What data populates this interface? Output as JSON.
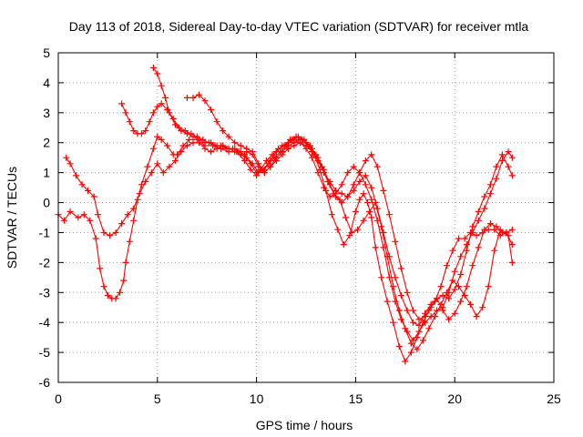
{
  "chart_data": {
    "type": "scatter",
    "title": "Day 113 of 2018, Sidereal Day-to-day VTEC variation (SDTVAR) for receiver mtla",
    "xlabel": "GPS time / hours",
    "ylabel": "SDTVAR / TECUs",
    "xlim": [
      0,
      25
    ],
    "ylim": [
      -6,
      5
    ],
    "xticks": [
      0,
      5,
      10,
      15,
      20,
      25
    ],
    "yticks": [
      -6,
      -5,
      -4,
      -3,
      -2,
      -1,
      0,
      1,
      2,
      3,
      4,
      5
    ],
    "grid": true,
    "marker": "+",
    "color": "#ff0000",
    "series": [
      {
        "x": [
          0.0,
          0.3,
          0.6,
          1.0,
          1.3,
          1.6,
          1.9,
          2.1,
          2.3,
          2.5,
          2.7,
          2.9,
          3.1,
          3.3,
          3.4,
          3.6,
          3.8,
          4.0,
          4.2,
          4.5,
          4.8,
          5.0,
          5.2,
          5.5,
          5.8,
          6.0,
          6.3,
          6.6,
          7.0,
          7.4,
          7.8,
          8.2,
          8.6,
          9.0,
          9.4,
          9.7,
          10.0,
          10.2,
          10.5,
          10.8,
          11.1,
          11.4,
          11.7,
          12.0,
          12.3,
          12.6,
          12.9,
          13.2,
          13.5,
          13.8,
          14.1,
          14.4,
          14.7,
          15.0,
          15.2,
          15.4,
          15.6,
          15.8,
          16.0,
          16.3,
          16.6,
          16.9,
          17.2,
          17.5,
          17.8,
          18.1,
          18.4,
          18.7,
          19.0,
          19.3,
          19.6,
          19.9,
          20.2,
          20.5,
          20.8,
          21.1,
          21.4,
          21.7,
          22.0,
          22.3,
          22.6,
          22.9
        ],
        "y": [
          -0.4,
          -0.6,
          -0.3,
          -0.5,
          -0.4,
          -0.6,
          -1.2,
          -2.2,
          -2.8,
          -3.1,
          -3.2,
          -3.2,
          -3.0,
          -2.6,
          -2.0,
          -1.3,
          -0.6,
          0.1,
          0.6,
          1.2,
          1.8,
          2.2,
          2.1,
          1.9,
          1.6,
          1.6,
          1.9,
          2.1,
          2.1,
          1.9,
          1.9,
          1.8,
          1.7,
          1.7,
          1.4,
          1.1,
          0.9,
          1.1,
          1.4,
          1.6,
          1.8,
          1.9,
          2.1,
          2.2,
          2.1,
          1.9,
          1.6,
          1.1,
          0.4,
          -0.4,
          -0.9,
          -1.4,
          -1.1,
          -0.3,
          0.1,
          0.3,
          0.0,
          -0.5,
          -1.5,
          -2.5,
          -3.3,
          -4.0,
          -4.8,
          -5.3,
          -5.0,
          -4.5,
          -4.0,
          -3.6,
          -3.3,
          -2.8,
          -2.1,
          -1.6,
          -1.2,
          -1.2,
          -1.0,
          -1.1,
          -1.0,
          -0.9,
          -0.9,
          -1.1,
          -1.0,
          -0.9
        ]
      },
      {
        "x": [
          0.4,
          0.6,
          0.9,
          1.2,
          1.5,
          1.8,
          2.0,
          2.3,
          2.6,
          2.9,
          3.2,
          3.5,
          3.8,
          4.1,
          4.4,
          4.7,
          5.0,
          5.3,
          5.6,
          5.9,
          6.2,
          6.5,
          6.8,
          7.1,
          7.4,
          7.7,
          8.0,
          8.3,
          8.6,
          8.9,
          9.2,
          9.5,
          9.8,
          10.1,
          10.4,
          10.7,
          11.0,
          11.3,
          11.6,
          11.9,
          12.2,
          12.5,
          12.8,
          13.1,
          13.4,
          13.7,
          14.0,
          14.3,
          14.6,
          14.9,
          15.2,
          15.5,
          15.8,
          16.1,
          16.4,
          16.7,
          17.0,
          17.3,
          17.6,
          17.9,
          18.2,
          18.5,
          18.8,
          19.1,
          19.4,
          19.7,
          20.0,
          20.3,
          20.6,
          20.9,
          21.2,
          21.5,
          21.8,
          22.1,
          22.4,
          22.7,
          22.9
        ],
        "y": [
          1.5,
          1.3,
          0.9,
          0.6,
          0.4,
          0.2,
          -0.4,
          -1.0,
          -1.1,
          -1.0,
          -0.7,
          -0.4,
          -0.2,
          0.3,
          0.7,
          1.0,
          1.3,
          1.0,
          1.2,
          1.4,
          1.7,
          1.9,
          2.0,
          2.0,
          1.8,
          1.7,
          1.8,
          1.9,
          1.8,
          1.7,
          1.6,
          1.5,
          1.3,
          1.0,
          1.1,
          1.4,
          1.7,
          1.9,
          2.0,
          2.1,
          2.0,
          1.8,
          1.5,
          1.0,
          0.5,
          0.2,
          0.3,
          0.6,
          1.0,
          1.2,
          1.0,
          0.6,
          0.1,
          -0.6,
          -1.5,
          -2.5,
          -3.3,
          -3.9,
          -4.3,
          -4.6,
          -4.3,
          -4.0,
          -3.8,
          -3.6,
          -3.5,
          -3.0,
          -2.3,
          -1.8,
          -1.4,
          -1.0,
          -0.6,
          -0.2,
          0.3,
          0.8,
          1.4,
          1.7,
          1.5
        ]
      },
      {
        "x": [
          3.2,
          3.4,
          3.6,
          3.8,
          4.0,
          4.2,
          4.4,
          4.6,
          4.8,
          5.0,
          5.2,
          5.5,
          5.8,
          6.1,
          6.4,
          6.7,
          7.0,
          7.3,
          7.6,
          7.9,
          8.2,
          8.5,
          8.8,
          9.1,
          9.4,
          9.7,
          10.0,
          10.3,
          10.6,
          10.9,
          11.2,
          11.5,
          11.8,
          12.1,
          12.4,
          12.7,
          13.0,
          13.3,
          13.6,
          13.9,
          14.2,
          14.5,
          14.8,
          15.1,
          15.4,
          15.7,
          16.0,
          16.3,
          16.6,
          16.9,
          17.2,
          17.5,
          17.8,
          18.1,
          18.4,
          18.7,
          19.0,
          19.3,
          19.6,
          19.9,
          20.2,
          20.5,
          20.8,
          21.1,
          21.4,
          21.7,
          22.0,
          22.3,
          22.6,
          22.9
        ],
        "y": [
          3.3,
          3.0,
          2.7,
          2.4,
          2.3,
          2.3,
          2.4,
          2.7,
          3.0,
          3.2,
          3.3,
          3.1,
          2.8,
          2.5,
          2.4,
          2.3,
          2.2,
          2.1,
          2.0,
          1.9,
          1.9,
          1.8,
          1.8,
          1.7,
          1.6,
          1.3,
          1.0,
          1.1,
          1.3,
          1.5,
          1.7,
          1.9,
          2.1,
          2.2,
          2.1,
          1.9,
          1.6,
          1.2,
          0.7,
          0.3,
          0.1,
          -0.5,
          -1.0,
          -0.9,
          -0.6,
          -0.3,
          0.0,
          -0.8,
          -1.8,
          -2.8,
          -3.6,
          -4.2,
          -4.7,
          -4.9,
          -4.6,
          -4.2,
          -3.8,
          -3.4,
          -3.0,
          -2.6,
          -2.8,
          -3.1,
          -3.4,
          -3.8,
          -3.5,
          -2.8,
          -1.6,
          -0.9,
          -1.0,
          -1.4
        ]
      },
      {
        "x": [
          4.8,
          5.0,
          5.2,
          5.4,
          5.6,
          5.9,
          6.2,
          6.5,
          6.8,
          7.1,
          7.4,
          7.7,
          8.0,
          8.3,
          8.6,
          8.9,
          9.2,
          9.5,
          9.8,
          10.1,
          10.4,
          10.7,
          11.0,
          11.3,
          11.6,
          11.9,
          12.2,
          12.5,
          12.8,
          13.1,
          13.4,
          13.7,
          14.0,
          14.3,
          14.6,
          14.9,
          15.2,
          15.5,
          15.8,
          16.1,
          16.4,
          16.7,
          17.0,
          17.3,
          17.6,
          17.9,
          18.2,
          18.5,
          18.8,
          19.1,
          19.4,
          19.7,
          20.0,
          20.3,
          20.6,
          20.9,
          21.2,
          21.5,
          21.8,
          22.1,
          22.4,
          22.7,
          22.9
        ],
        "y": [
          4.5,
          4.3,
          3.9,
          3.5,
          3.0,
          2.6,
          2.4,
          2.3,
          2.2,
          2.1,
          2.0,
          2.0,
          1.9,
          1.9,
          1.8,
          1.8,
          1.7,
          1.7,
          1.6,
          1.2,
          1.0,
          1.2,
          1.5,
          1.7,
          1.9,
          2.0,
          2.1,
          2.0,
          1.8,
          1.5,
          1.1,
          0.6,
          0.2,
          0.0,
          0.2,
          0.6,
          1.0,
          1.4,
          1.6,
          1.2,
          0.4,
          -0.4,
          -1.3,
          -2.2,
          -3.0,
          -3.6,
          -3.9,
          -3.8,
          -3.5,
          -3.2,
          -3.1,
          -3.2,
          -2.9,
          -2.4,
          -1.6,
          -0.8,
          -0.3,
          0.2,
          0.6,
          1.2,
          1.6,
          1.2,
          0.9
        ]
      },
      {
        "x": [
          6.5,
          6.8,
          7.1,
          7.4,
          7.7,
          8.0,
          8.3,
          8.6,
          8.9,
          9.2,
          9.5,
          9.8,
          10.1,
          10.4,
          10.7,
          11.0,
          11.3,
          11.6,
          11.9,
          12.2,
          12.5,
          12.8,
          13.1,
          13.4,
          13.7,
          14.0,
          14.3,
          14.6,
          14.9,
          15.2,
          15.5,
          15.8,
          16.1,
          16.4,
          16.7,
          17.0,
          17.3,
          17.6,
          17.9,
          18.2,
          18.5,
          18.8,
          19.1,
          19.4,
          19.7,
          20.0,
          20.3,
          20.6,
          20.9,
          21.2,
          21.5,
          21.8,
          22.1,
          22.4,
          22.7,
          22.9
        ],
        "y": [
          3.5,
          3.5,
          3.6,
          3.4,
          3.1,
          2.7,
          2.4,
          2.2,
          2.0,
          1.9,
          1.8,
          1.7,
          1.3,
          1.0,
          1.2,
          1.4,
          1.6,
          1.8,
          1.9,
          2.0,
          1.9,
          1.7,
          1.4,
          1.0,
          0.7,
          0.4,
          0.3,
          0.2,
          0.4,
          0.7,
          0.9,
          0.5,
          -0.2,
          -1.0,
          -1.8,
          -2.5,
          -3.1,
          -3.6,
          -4.0,
          -4.1,
          -3.7,
          -3.4,
          -3.2,
          -3.6,
          -3.9,
          -3.7,
          -3.3,
          -2.8,
          -2.1,
          -1.5,
          -0.9,
          -0.7,
          -0.8,
          -1.0,
          -1.1,
          -2.0
        ]
      }
    ]
  }
}
